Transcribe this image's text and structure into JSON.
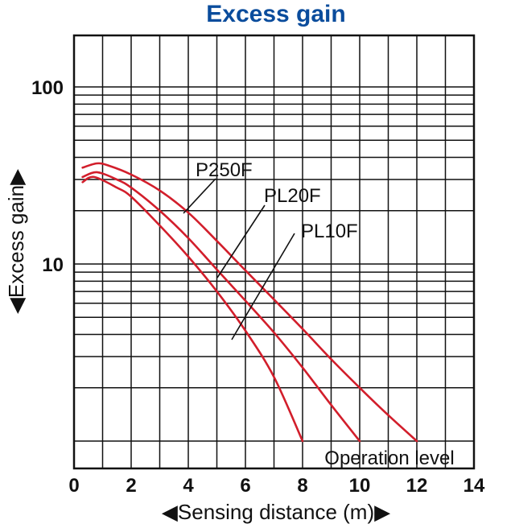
{
  "chart_data": {
    "type": "line",
    "title": "Excess gain",
    "xlabel": "Sensing distance (m)",
    "ylabel": "Excess gain",
    "x_ticks": [
      0,
      2,
      4,
      6,
      8,
      10,
      12,
      14
    ],
    "y_ticks": [
      10,
      100
    ],
    "xlim": [
      0,
      14
    ],
    "ylim": [
      1,
      200
    ],
    "yscale": "log",
    "grid": true,
    "operation_level": 1,
    "operation_level_label": "Operation level",
    "series": [
      {
        "name": "P250F",
        "x": [
          0.3,
          0.8,
          1.2,
          2,
          3,
          4,
          5,
          6,
          7,
          8,
          9,
          10,
          11,
          12
        ],
        "y": [
          35,
          37,
          36,
          32,
          26,
          19.5,
          13.5,
          9.2,
          6.3,
          4.3,
          2.9,
          2.0,
          1.4,
          1.0
        ]
      },
      {
        "name": "PL20F",
        "x": [
          0.3,
          0.8,
          1.5,
          2,
          3,
          4,
          5,
          6,
          7,
          8,
          9,
          10
        ],
        "y": [
          31,
          33,
          30,
          27,
          20,
          14,
          9.3,
          6.2,
          4.1,
          2.6,
          1.6,
          1.0
        ]
      },
      {
        "name": "PL10F",
        "x": [
          0.3,
          0.7,
          1.5,
          2,
          3,
          4,
          5,
          6,
          7,
          8
        ],
        "y": [
          29,
          31,
          27,
          24,
          16.5,
          11,
          7.0,
          4.2,
          2.3,
          1.0
        ]
      }
    ],
    "colors": {
      "curve": "#d21e2b",
      "title": "#0a4c9c",
      "grid": "#111111"
    }
  }
}
